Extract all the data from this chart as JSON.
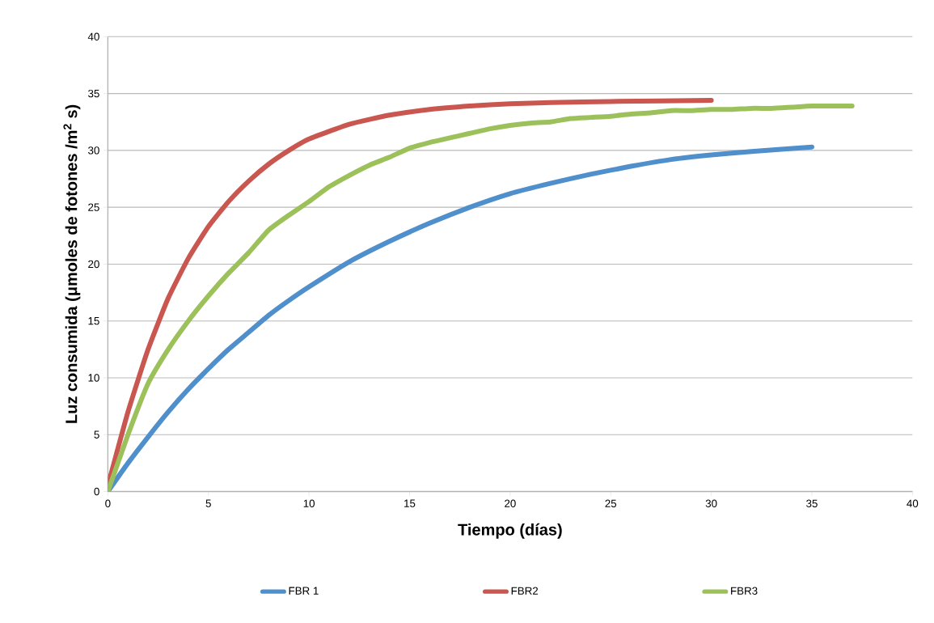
{
  "chart_data": {
    "type": "line",
    "xlabel": "Tiempo (días)",
    "ylabel": "Luz consumida (μmoles de fotones /m$^{2}$ s)",
    "xlim": [
      0,
      40
    ],
    "xticks": [
      0,
      5,
      10,
      15,
      20,
      25,
      30,
      35,
      40
    ],
    "ylim": [
      0,
      40
    ],
    "yticks": [
      0,
      5,
      10,
      15,
      20,
      25,
      30,
      35,
      40
    ],
    "grid": "y",
    "legend": "bottom",
    "marker": "none",
    "line_style": "solid",
    "series": [
      {
        "name": "FBR 1",
        "color": "#4f8fcb",
        "x": [
          0,
          1,
          2,
          3,
          4,
          5,
          6,
          7,
          8,
          9,
          10,
          12,
          14,
          16,
          18,
          20,
          22,
          24,
          26,
          28,
          30,
          32,
          35
        ],
        "values": [
          0,
          2.5,
          4.8,
          7,
          9,
          10.8,
          12.5,
          14,
          15.5,
          16.8,
          18,
          20.2,
          22,
          23.6,
          25,
          26.2,
          27.1,
          27.9,
          28.6,
          29.2,
          29.6,
          29.9,
          30.3
        ]
      },
      {
        "name": "FBR2",
        "color": "#c9564f",
        "x": [
          0,
          1,
          2,
          3,
          4,
          5,
          6,
          7,
          8,
          9,
          10,
          12,
          14,
          16,
          18,
          20,
          22,
          25,
          30
        ],
        "values": [
          0.5,
          7,
          12.5,
          17,
          20.5,
          23.3,
          25.5,
          27.3,
          28.8,
          30,
          31,
          32.3,
          33.1,
          33.6,
          33.9,
          34.1,
          34.2,
          34.3,
          34.4
        ]
      },
      {
        "name": "FBR3",
        "color": "#9dc15a",
        "x": [
          0,
          1,
          2,
          3,
          4,
          5,
          6,
          7,
          8,
          9,
          10,
          11,
          12,
          13,
          14,
          15,
          16,
          17,
          18,
          19,
          20,
          21,
          22,
          23,
          24,
          25,
          26,
          27,
          28,
          29,
          30,
          31,
          32,
          33,
          34,
          35,
          36,
          37
        ],
        "values": [
          0,
          5,
          9.5,
          12.5,
          15,
          17.2,
          19.2,
          21,
          23,
          24.3,
          25.5,
          26.8,
          27.8,
          28.7,
          29.4,
          30.2,
          30.7,
          31.1,
          31.5,
          31.9,
          32.2,
          32.4,
          32.5,
          32.8,
          32.9,
          33,
          33.2,
          33.3,
          33.5,
          33.5,
          33.6,
          33.6,
          33.7,
          33.7,
          33.8,
          33.9,
          33.9,
          33.9
        ]
      }
    ]
  }
}
